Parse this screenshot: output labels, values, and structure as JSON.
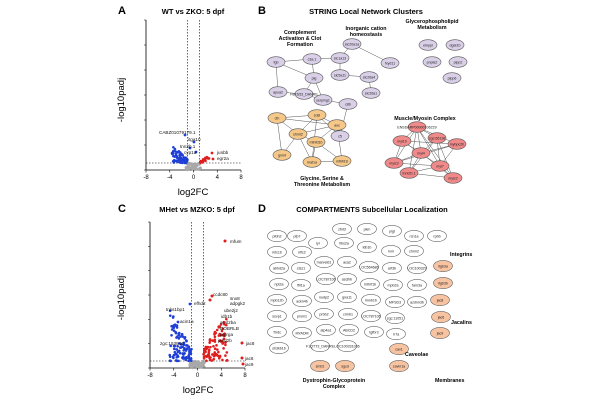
{
  "panels": {
    "a": {
      "letter": "A",
      "title": "WT vs ZKO: 5 dpf"
    },
    "b": {
      "letter": "B",
      "title": "STRING Local Network Clusters"
    },
    "c": {
      "letter": "C",
      "title": "MHet vs MZKO: 5 dpf"
    },
    "d": {
      "letter": "D",
      "title": "COMPARTMENTS Subcellular Localization"
    }
  },
  "axes": {
    "xlabel": "log2FC",
    "ylabel": "-log10padj",
    "xticks": [
      "-8",
      "-4",
      "0",
      "4",
      "8"
    ]
  },
  "colors": {
    "down": "#1f3fd6",
    "up": "#e01e1e",
    "ns": "#a8a8a8",
    "purple": "#d9d0e8",
    "orange": "#f5c88a",
    "red": "#f08a8a",
    "white": "#ffffff",
    "salmon": "#f8c3a0"
  },
  "chart_data": [
    {
      "type": "scatter",
      "title": "WT vs ZKO: 5 dpf",
      "xlabel": "log2FC",
      "ylabel": "-log10padj",
      "xlim": [
        -8,
        8
      ],
      "gene_labels": [
        "CABZ01079179.1",
        "itga10",
        "tnn2b.1",
        "cyp1a",
        "junbb",
        "egr2a"
      ]
    },
    {
      "type": "scatter",
      "title": "MHet vs MZKO: 5 dpf",
      "xlabel": "log2FC",
      "ylabel": "-log10padj",
      "xlim": [
        -8,
        8
      ],
      "gene_labels": [
        "mfum",
        "tnks1bp1",
        "efhd2",
        "acin1a",
        "zgc:153846",
        "ccdc80",
        "snx8",
        "adpgk2",
        "ube2j2",
        "idb1b",
        "acsl2ba",
        "DOBRLB",
        "ptgrga",
        "jand2b",
        "jac8",
        "jac6",
        "jac9"
      ]
    }
  ],
  "string_clusters": [
    {
      "name": "Complement Activation & Clot Formation"
    },
    {
      "name": "Inorganic cation homeostasis"
    },
    {
      "name": "Glycerophospholipid Metabolism"
    },
    {
      "name": "Muscle/Myosin Complex"
    },
    {
      "name": "Glycine, Serine & Threonine Metabolism"
    }
  ],
  "string_nodes": {
    "complement": [
      "fgb",
      "c3a.1",
      "plg",
      "apoa2",
      "F8KS53_DANRE",
      "serping1",
      "c8b",
      "c5"
    ],
    "inorganic": [
      "slc20a1a",
      "slc1a13",
      "slc5a11",
      "slc26a4",
      "slc26a1",
      "fxyd11"
    ],
    "glycero": [
      "etnppl",
      "dgat1b",
      "pnpla2",
      "plpp2",
      "plpp6"
    ],
    "glycine": [
      "cth",
      "sdsl",
      "shmt2",
      "aoc",
      "mthfd1b",
      "gnmt",
      "mat1a",
      "mthfd1l"
    ],
    "muscle": [
      "ENSDARP00000106229",
      "myl10",
      "zgc:66118",
      "myl4",
      "mylz3",
      "tnnt2b.1",
      "myl7",
      "mybpc2b",
      "mylz2"
    ]
  },
  "compartments": {
    "labels": {
      "integrins": "Integrins",
      "jacalins": "Jacalins",
      "caveolae": "Caveolae",
      "membranes": "Membranes",
      "dystro": "Dystrophin-Glycoprotein Complex"
    },
    "white_nodes": [
      "pfdn2",
      "pfp7",
      "zfnt3",
      "pkm",
      "pigt",
      "rcn1a",
      "rpbb",
      "mtc1b",
      "nflc2",
      "lyr",
      "lrbs2a",
      "ldb1b",
      "rnm",
      "chrm2",
      "abhd2a",
      "ctsz1",
      "marveld1",
      "aca2",
      "LOC564686",
      "arf3b",
      "LOC100329",
      "npt2a",
      "ffil1a",
      "LOC787106",
      "asclhb",
      "mthrf1b",
      "mpb2a",
      "fam3a",
      "mpb12b",
      "ackn4b",
      "nudp2",
      "gna11",
      "lmnb1b",
      "MFSD3",
      "azdnn3b",
      "ssvp1",
      "prsm1",
      "prbb2",
      "crmb1",
      "LOC787106",
      "zgc:11051",
      "Tlrdc",
      "MYADM",
      "atp4a1",
      "ABCD2",
      "tgfbr3",
      "rr7a",
      "sh3kb1b",
      "F1QTT3_DANRE",
      "LOC100331036"
    ],
    "salmon_nodes": [
      "itgb3a",
      "itgb3b",
      "jac8",
      "jac6",
      "jac9",
      "cav1",
      "cavin1a",
      "smb2",
      "sgcd"
    ]
  }
}
